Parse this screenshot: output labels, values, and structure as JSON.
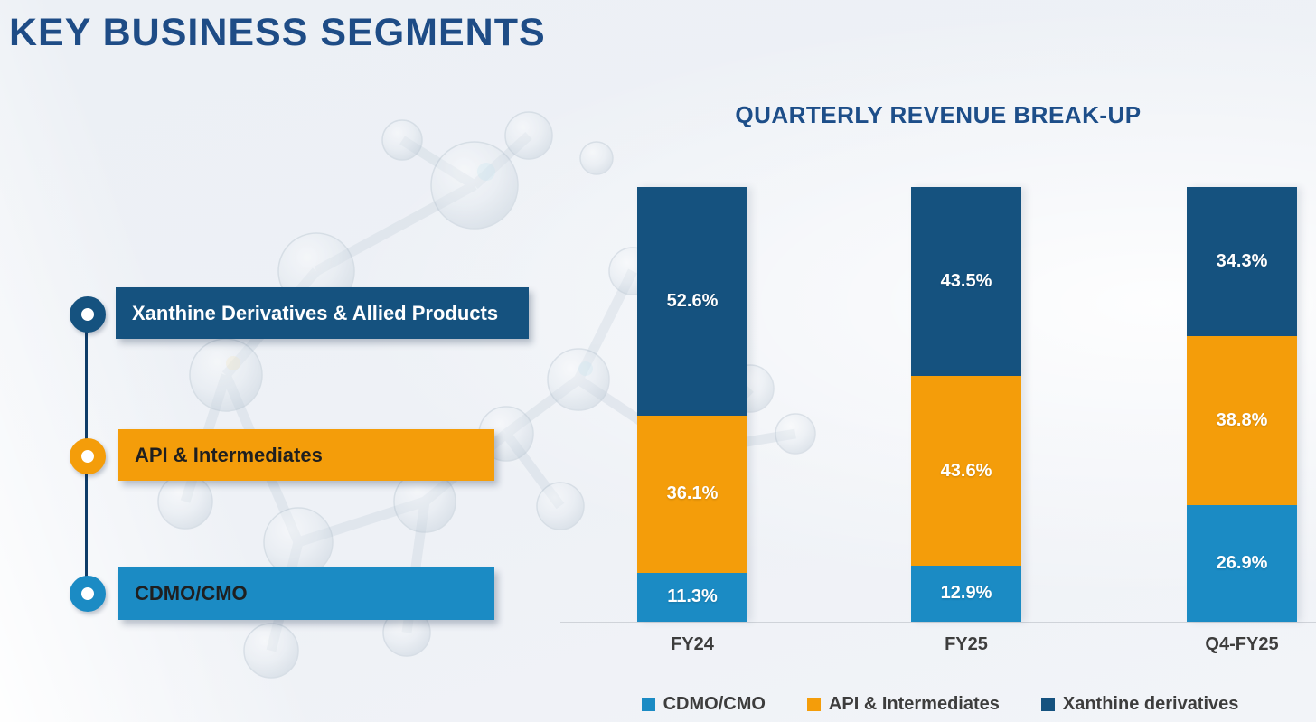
{
  "page": {
    "background_color": "#eef1f6",
    "accent_navy": "#1e4c86"
  },
  "header": {
    "title": "KEY BUSINESS SEGMENTS"
  },
  "segments_panel": {
    "items": [
      {
        "label": "Xanthine Derivatives & Allied Products",
        "color": "#15527f",
        "text_color": "#ffffff"
      },
      {
        "label": "API & Intermediates",
        "color": "#f49d0a",
        "text_color": "#1f1f1f"
      },
      {
        "label": "CDMO/CMO",
        "color": "#1b8bc4",
        "text_color": "#1f1f1f"
      }
    ]
  },
  "chart_data": {
    "type": "bar",
    "stacked": true,
    "percent_stacked": true,
    "title": "QUARTERLY REVENUE BREAK-UP",
    "categories": [
      "FY24",
      "FY25",
      "Q4-FY25"
    ],
    "series": [
      {
        "name": "CDMO/CMO",
        "color": "#1b8bc4",
        "values": [
          11.3,
          12.9,
          26.9
        ]
      },
      {
        "name": "API & Intermediates",
        "color": "#f49d0a",
        "values": [
          36.1,
          43.6,
          38.8
        ]
      },
      {
        "name": "Xanthine derivatives",
        "color": "#15527f",
        "values": [
          52.6,
          43.5,
          34.3
        ]
      }
    ],
    "value_label_format": "{v}%",
    "ylim": [
      0,
      100
    ],
    "grid": false,
    "legend": [
      "CDMO/CMO",
      "API & Intermediates",
      "Xanthine derivatives"
    ],
    "legend_position": "bottom"
  }
}
